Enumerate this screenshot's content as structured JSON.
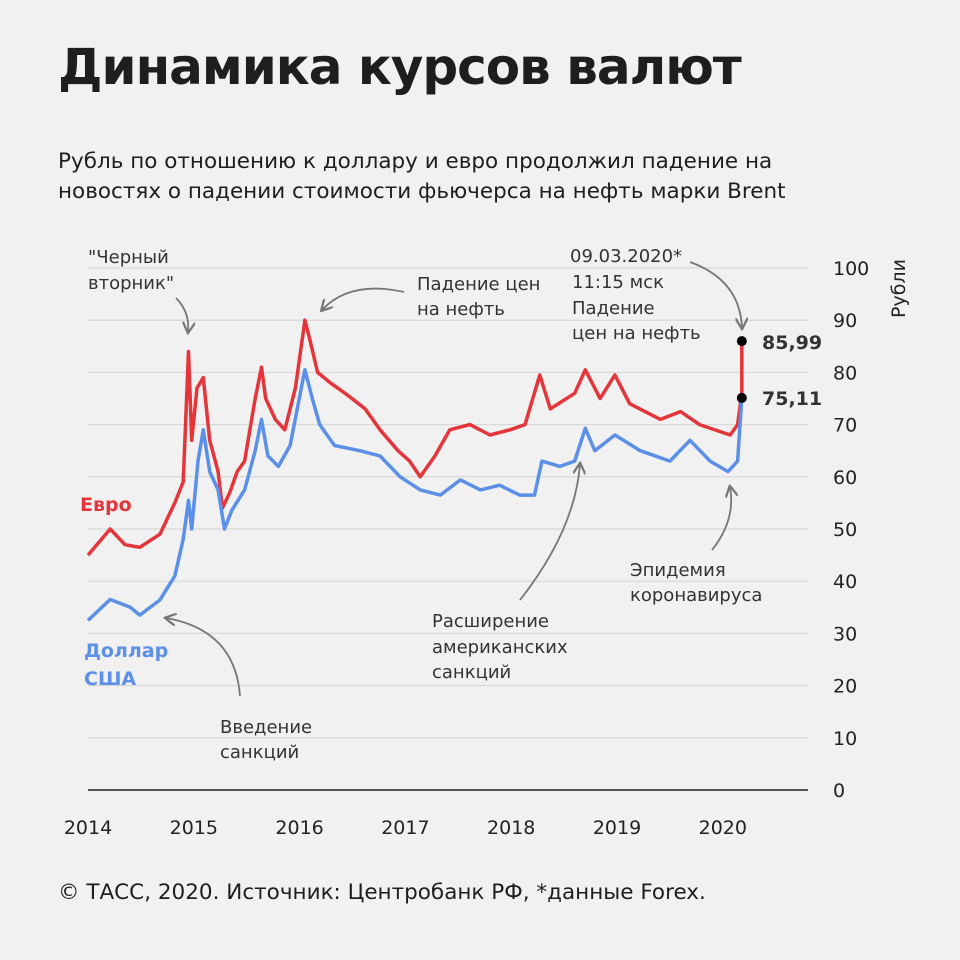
{
  "title": "Динамика курсов валют",
  "subtitle_lines": [
    "Рубль по отношению к доллару и евро продолжил падение на",
    "новостях о падении стоимости фьючерса на нефть марки Brent"
  ],
  "footer": "© ТАСС, 2020. Источник: Центробанк РФ, *данные Forex.",
  "chart_data": {
    "type": "line",
    "ylabel": "Рубли",
    "ylim": [
      0,
      100
    ],
    "yticks": [
      "0",
      "10",
      "20",
      "30",
      "40",
      "50",
      "60",
      "70",
      "80",
      "90",
      "100"
    ],
    "xlim": [
      2014,
      2020.8
    ],
    "xticks": [
      "2014",
      "2015",
      "2016",
      "2017",
      "2018",
      "2019",
      "2020"
    ],
    "grid": true,
    "colors": {
      "euro": "#e3353a",
      "dollar": "#5b8fe8"
    },
    "series": [
      {
        "name": "Евро",
        "color": "#e3353a",
        "x": [
          2014.0,
          2014.21,
          2014.35,
          2014.49,
          2014.68,
          2014.82,
          2014.9,
          2014.95,
          2014.98,
          2015.03,
          2015.09,
          2015.15,
          2015.23,
          2015.27,
          2015.34,
          2015.41,
          2015.48,
          2015.58,
          2015.64,
          2015.68,
          2015.77,
          2015.86,
          2015.96,
          2016.05,
          2016.1,
          2016.17,
          2016.29,
          2016.43,
          2016.62,
          2016.76,
          2016.93,
          2017.04,
          2017.14,
          2017.28,
          2017.42,
          2017.61,
          2017.8,
          2017.99,
          2018.13,
          2018.27,
          2018.37,
          2018.6,
          2018.7,
          2018.84,
          2018.98,
          2019.12,
          2019.41,
          2019.6,
          2019.78,
          2020.07,
          2020.14,
          2020.18,
          2020.18
        ],
        "y": [
          45,
          50,
          47,
          46.5,
          49,
          55,
          59,
          84,
          67,
          77,
          79,
          67,
          61,
          54,
          57,
          61,
          63,
          75,
          81,
          75,
          71,
          69,
          77,
          90,
          86,
          80,
          78,
          76,
          73,
          69,
          65,
          63,
          60,
          64,
          69,
          70,
          68,
          69,
          70,
          79.5,
          73,
          76,
          80.5,
          75,
          79.5,
          74,
          71,
          72.5,
          70,
          68,
          70,
          76,
          85.99
        ]
      },
      {
        "name": "Доллар США",
        "color": "#5b8fe8",
        "x": [
          2014.0,
          2014.21,
          2014.4,
          2014.49,
          2014.68,
          2014.82,
          2014.9,
          2014.95,
          2014.98,
          2015.04,
          2015.09,
          2015.15,
          2015.23,
          2015.29,
          2015.36,
          2015.48,
          2015.58,
          2015.64,
          2015.7,
          2015.8,
          2015.91,
          2016.05,
          2016.12,
          2016.19,
          2016.33,
          2016.57,
          2016.76,
          2016.95,
          2017.14,
          2017.33,
          2017.52,
          2017.71,
          2017.89,
          2018.08,
          2018.22,
          2018.29,
          2018.46,
          2018.6,
          2018.7,
          2018.79,
          2018.98,
          2019.22,
          2019.5,
          2019.69,
          2019.88,
          2020.05,
          2020.14,
          2020.18
        ],
        "y": [
          32.5,
          36.5,
          35,
          33.5,
          36.4,
          41,
          48,
          55.5,
          50,
          63,
          69,
          61,
          57.5,
          50,
          53.6,
          57.5,
          65,
          71,
          64,
          62,
          66,
          80.5,
          75,
          70,
          66,
          65,
          64,
          60,
          57.5,
          56.5,
          59.4,
          57.5,
          58.4,
          56.5,
          56.5,
          63,
          62,
          63,
          69.3,
          65,
          68,
          65,
          63,
          67,
          63,
          61,
          63,
          75.11
        ]
      }
    ],
    "series_labels": {
      "euro": "Евро",
      "dollar_line1": "Доллар",
      "dollar_line2": "США"
    },
    "end_values": {
      "euro": "85,99",
      "dollar": "75,11"
    },
    "annotations": {
      "black_tuesday": [
        "\"Черный",
        "вторник\""
      ],
      "oil_drop": [
        "Падение цен",
        "на нефть"
      ],
      "date_note": [
        "09.03.2020*",
        "11:15 мск",
        "Падение",
        "цен на нефть"
      ],
      "epidemic": [
        "Эпидемия",
        "коронавируса"
      ],
      "us_sanctions": [
        "Расширение",
        "американских",
        "санкций"
      ],
      "sanctions": [
        "Введение",
        "санкций"
      ]
    }
  }
}
